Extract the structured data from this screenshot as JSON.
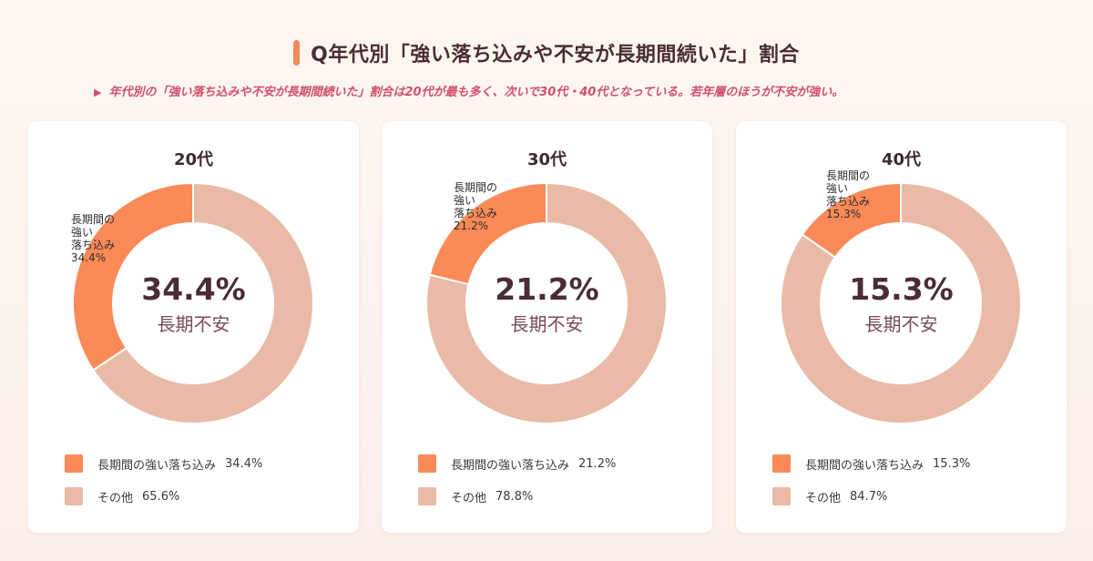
{
  "header": {
    "title": "Q年代別「強い落ち込みや不安が長期間続いた」割合",
    "subtitle_icon": "triangle-right-icon",
    "subtitle": "年代別の「強い落ち込みや不安が長期間続いた」割合は20代が最も多く、次いで30代・40代となっている。若年層のほうが不安が強い。"
  },
  "colors": {
    "primary": "#fa8a58",
    "secondary": "#e9bba6",
    "accent": "#f28a5b",
    "subtitle": "#d0506c"
  },
  "chart_data": [
    {
      "type": "pie",
      "title": "20代",
      "categories": [
        "長期間の強い落ち込み",
        "その他"
      ],
      "values": [
        34.4,
        65.6
      ],
      "center_value": "34.4%",
      "center_label": "長期不安",
      "slice_label": "長期間の\n強い\n落ち込み\n34.4%",
      "legend": [
        {
          "label": "長期間の強い落ち込み",
          "value": "34.4%"
        },
        {
          "label": "その他",
          "value": "65.6%"
        }
      ]
    },
    {
      "type": "pie",
      "title": "30代",
      "categories": [
        "長期間の強い落ち込み",
        "その他"
      ],
      "values": [
        21.2,
        78.8
      ],
      "center_value": "21.2%",
      "center_label": "長期不安",
      "slice_label": "長期間の\n強い\n落ち込み\n21.2%",
      "legend": [
        {
          "label": "長期間の強い落ち込み",
          "value": "21.2%"
        },
        {
          "label": "その他",
          "value": "78.8%"
        }
      ]
    },
    {
      "type": "pie",
      "title": "40代",
      "categories": [
        "長期間の強い落ち込み",
        "その他"
      ],
      "values": [
        15.3,
        84.7
      ],
      "center_value": "15.3%",
      "center_label": "長期不安",
      "slice_label": "長期間の\n強い\n落ち込み\n15.3%",
      "legend": [
        {
          "label": "長期間の強い落ち込み",
          "value": "15.3%"
        },
        {
          "label": "その他",
          "value": "84.7%"
        }
      ]
    }
  ]
}
